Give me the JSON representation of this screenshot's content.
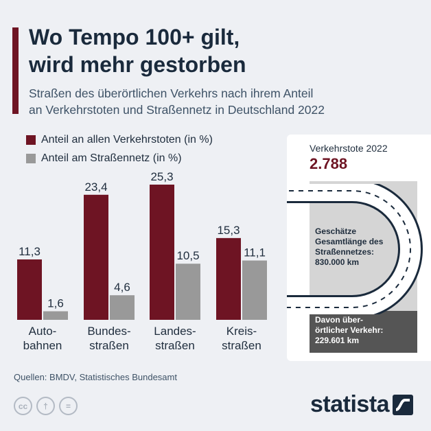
{
  "header": {
    "title": "Wo Tempo 100+ gilt,\nwird mehr gestorben",
    "subtitle": "Straßen des überörtlichen Verkehrs nach ihrem Anteil\nan Verkehrstoten und Straßennetz in Deutschland 2022"
  },
  "colors": {
    "maroon": "#6e1423",
    "gray": "#999999",
    "accent": "#6e1423"
  },
  "chart_data": {
    "type": "bar",
    "title": "Wo Tempo 100+ gilt, wird mehr gestorben",
    "categories": [
      "Autobahnen",
      "Bundesstraßen",
      "Landesstraßen",
      "Kreisstraßen"
    ],
    "category_lines": [
      [
        "Auto-",
        "bahnen"
      ],
      [
        "Bundes-",
        "straßen"
      ],
      [
        "Landes-",
        "straßen"
      ],
      [
        "Kreis-",
        "straßen"
      ]
    ],
    "series": [
      {
        "name": "Anteil an allen Verkehrstoten (in %)",
        "color": "#6e1423",
        "values": [
          11.3,
          23.4,
          25.3,
          15.3
        ],
        "labels": [
          "11,3",
          "23,4",
          "25,3",
          "15,3"
        ]
      },
      {
        "name": "Anteil am Straßennetz (in %)",
        "color": "#999999",
        "values": [
          1.6,
          4.6,
          10.5,
          11.1
        ],
        "labels": [
          "1,6",
          "4,6",
          "10,5",
          "11,1"
        ]
      }
    ],
    "ylim": [
      0,
      25.3
    ],
    "grid": false,
    "legend": "top-left"
  },
  "card": {
    "label": "Verkehrstote 2022",
    "value": "2.788",
    "length_label": "Geschätze\nGesamtlänge des\nStraßennetzes:",
    "length_value": "830.000 km",
    "through_label": "Davon über-\nörtlicher Verkehr:",
    "through_value": "229.601 km"
  },
  "source": "Quellen: BMDV, Statistisches Bundesamt",
  "footer": {
    "logo": "statista",
    "cc_icons": [
      {
        "name": "cc-icon",
        "glyph": "cc"
      },
      {
        "name": "by-icon",
        "glyph": "†"
      },
      {
        "name": "nd-icon",
        "glyph": "="
      }
    ]
  }
}
